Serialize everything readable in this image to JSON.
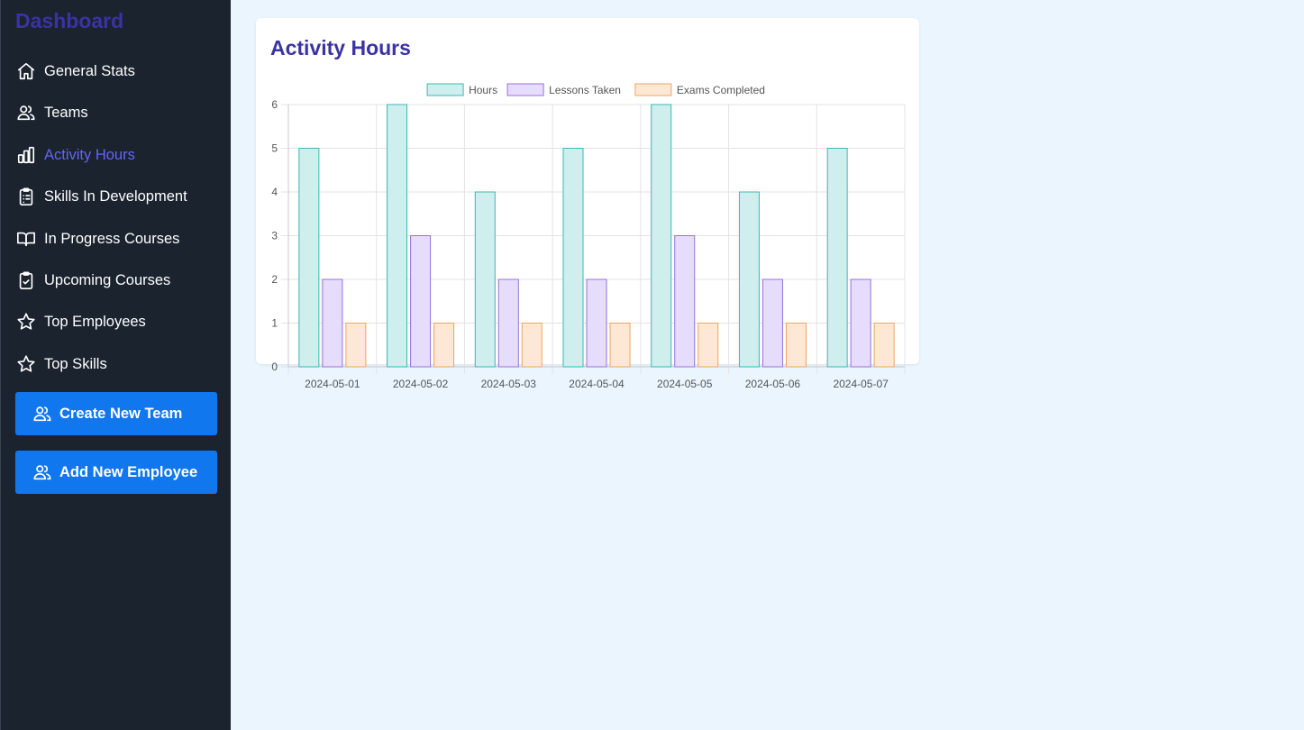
{
  "sidebar": {
    "brand": "Dashboard",
    "items": [
      {
        "label": "General Stats",
        "icon": "home-icon",
        "active": false
      },
      {
        "label": "Teams",
        "icon": "users-icon",
        "active": false
      },
      {
        "label": "Activity Hours",
        "icon": "bar-chart-icon",
        "active": true
      },
      {
        "label": "Skills In Development",
        "icon": "clipboard-list-icon",
        "active": false
      },
      {
        "label": "In Progress Courses",
        "icon": "book-open-icon",
        "active": false
      },
      {
        "label": "Upcoming Courses",
        "icon": "clipboard-check-icon",
        "active": false
      },
      {
        "label": "Top Employees",
        "icon": "star-icon",
        "active": false
      },
      {
        "label": "Top Skills",
        "icon": "star-icon",
        "active": false
      }
    ],
    "actions": {
      "create_team": "Create New Team",
      "add_employee": "Add New Employee"
    }
  },
  "main": {
    "title": "Activity Hours"
  },
  "chart_data": {
    "type": "bar",
    "categories": [
      "2024-05-01",
      "2024-05-02",
      "2024-05-03",
      "2024-05-04",
      "2024-05-05",
      "2024-05-06",
      "2024-05-07"
    ],
    "series": [
      {
        "name": "Hours",
        "values": [
          5,
          6,
          4,
          5,
          6,
          4,
          5
        ],
        "fill": "#cfeeee",
        "stroke": "#3bb8b4"
      },
      {
        "name": "Lessons Taken",
        "values": [
          2,
          3,
          2,
          2,
          3,
          2,
          2
        ],
        "fill": "#e6ddfd",
        "stroke": "#9a6ee0"
      },
      {
        "name": "Exams Completed",
        "values": [
          1,
          1,
          1,
          1,
          1,
          1,
          1
        ],
        "fill": "#fde8d6",
        "stroke": "#eea462"
      }
    ],
    "ylim": [
      0,
      6
    ],
    "yticks": [
      0,
      1,
      2,
      3,
      4,
      5,
      6
    ],
    "grid": true,
    "legend": "top-center"
  },
  "colors": {
    "sidebar_bg": "#1b232f",
    "accent": "#3a33a3",
    "active_nav": "#6366f1",
    "button": "#1177ee",
    "page_bg": "#ebf5fe"
  }
}
